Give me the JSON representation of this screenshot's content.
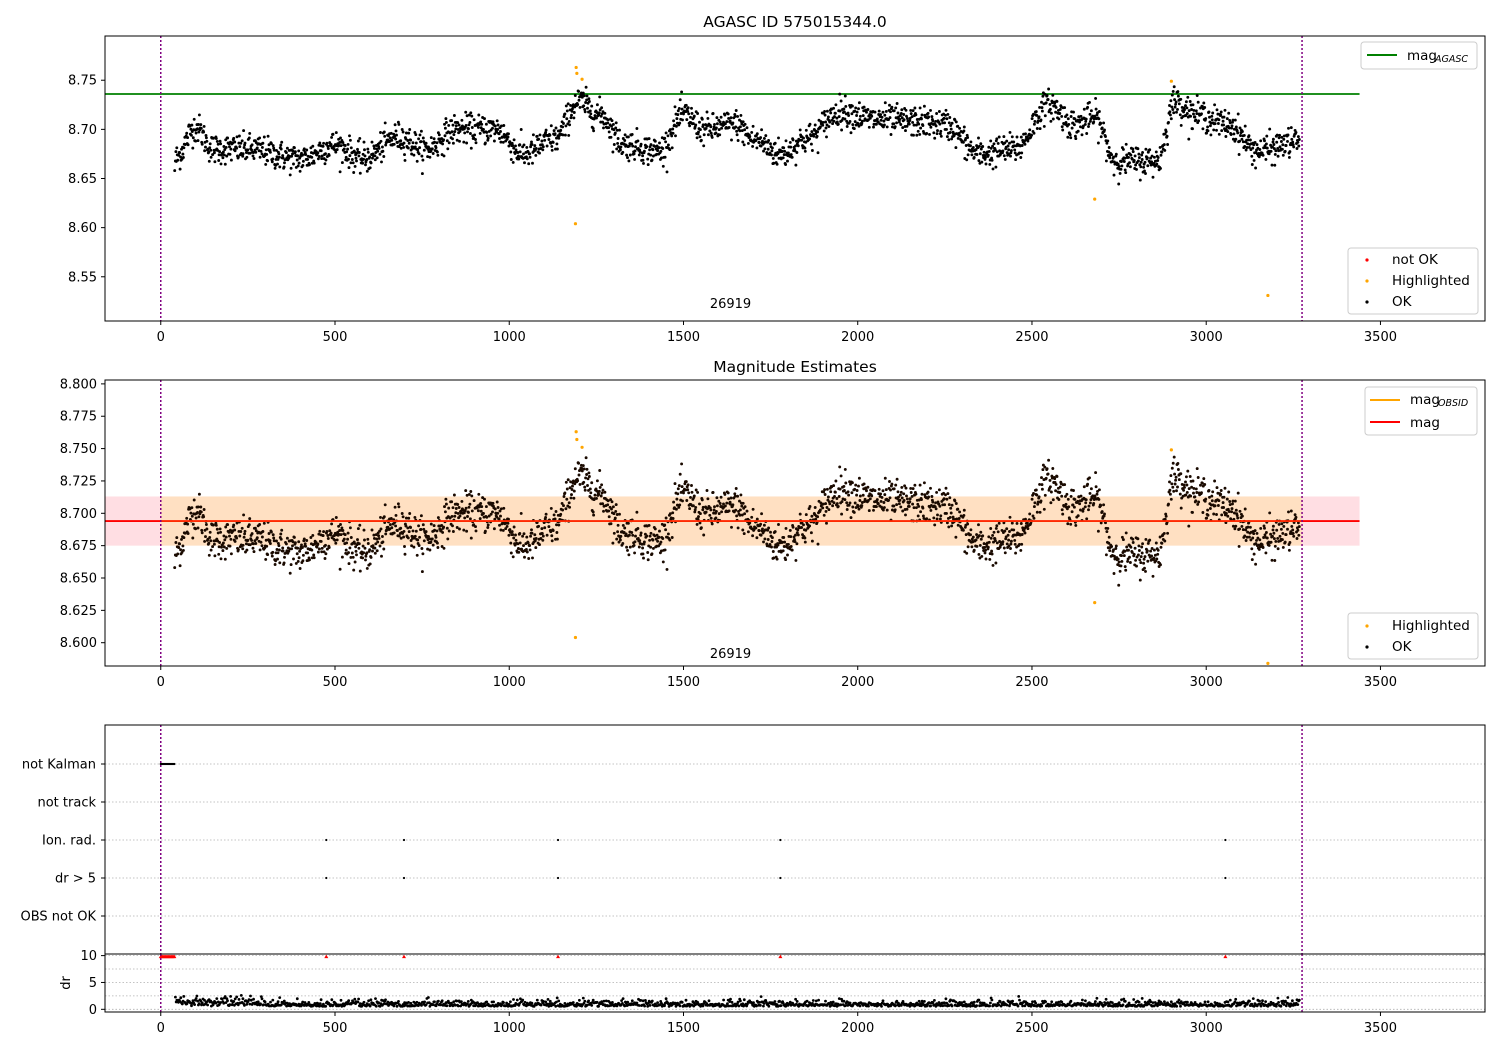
{
  "chart_data": [
    {
      "type": "scatter",
      "title": "AGASC ID 575015344.0",
      "xlim": [
        -160,
        3800
      ],
      "ylim": [
        8.505,
        8.795
      ],
      "xticks": [
        0,
        500,
        1000,
        1500,
        2000,
        2500,
        3000,
        3500
      ],
      "xtick_labels": [
        "0",
        "500",
        "1000",
        "1500",
        "2000",
        "2500",
        "3000",
        "3500"
      ],
      "yticks": [
        8.55,
        8.6,
        8.65,
        8.7,
        8.75
      ],
      "ytick_labels": [
        "8.55",
        "8.60",
        "8.65",
        "8.70",
        "8.75"
      ],
      "vlines": [
        0,
        3275
      ],
      "annotation": {
        "text": "26919",
        "x": 1635,
        "y": 8.518
      },
      "mag_agasc": 8.736,
      "mag_agasc_x": [
        -160,
        3440
      ],
      "legend_lines": [
        {
          "label": "mag",
          "sub": "AGASC",
          "color": "#008000"
        }
      ],
      "legend_points": [
        {
          "label": "not OK",
          "color": "#ff0000"
        },
        {
          "label": "Highlighted",
          "color": "#ffa500"
        },
        {
          "label": "OK",
          "color": "#000000"
        }
      ],
      "highlighted": [
        [
          1192,
          8.763
        ],
        [
          1194,
          8.757
        ],
        [
          1209,
          8.751
        ],
        [
          1190,
          8.604
        ],
        [
          2680,
          8.629
        ],
        [
          2900,
          8.749
        ],
        [
          3177,
          8.531
        ]
      ]
    },
    {
      "type": "scatter",
      "title": "Magnitude Estimates",
      "xlim": [
        -160,
        3800
      ],
      "ylim": [
        8.582,
        8.803
      ],
      "xticks": [
        0,
        500,
        1000,
        1500,
        2000,
        2500,
        3000,
        3500
      ],
      "xtick_labels": [
        "0",
        "500",
        "1000",
        "1500",
        "2000",
        "2500",
        "3000",
        "3500"
      ],
      "yticks": [
        8.6,
        8.625,
        8.65,
        8.675,
        8.7,
        8.725,
        8.75,
        8.775,
        8.8
      ],
      "ytick_labels": [
        "8.600",
        "8.625",
        "8.650",
        "8.675",
        "8.700",
        "8.725",
        "8.750",
        "8.775",
        "8.800"
      ],
      "vlines": [
        0,
        3275
      ],
      "annotation": {
        "text": "26919",
        "x": 1635,
        "y": 8.588
      },
      "mag": 8.694,
      "mag_band": [
        8.675,
        8.713
      ],
      "mag_x": [
        -160,
        3440
      ],
      "legend_lines": [
        {
          "label": "mag",
          "sub": "OBSID",
          "color": "#ffa500"
        },
        {
          "label": "mag",
          "sub": "",
          "color": "#ff0000"
        }
      ],
      "legend_points": [
        {
          "label": "Highlighted",
          "color": "#ffa500"
        },
        {
          "label": "OK",
          "color": "#000000"
        }
      ],
      "highlighted": [
        [
          1192,
          8.763
        ],
        [
          1194,
          8.757
        ],
        [
          1209,
          8.751
        ],
        [
          1190,
          8.604
        ],
        [
          2680,
          8.631
        ],
        [
          2900,
          8.749
        ],
        [
          3177,
          8.584
        ]
      ]
    },
    {
      "type": "scatter",
      "title": "",
      "xlim": [
        -160,
        3800
      ],
      "categories": [
        "not Kalman",
        "not track",
        "Ion. rad.",
        "dr > 5",
        "OBS not OK"
      ],
      "flags": {
        "not Kalman": [
          0,
          3,
          6,
          9,
          12,
          15,
          18,
          21,
          24,
          27,
          30,
          33,
          36,
          39
        ],
        "not track": [],
        "Ion. rad.": [
          475,
          698,
          1140,
          1778,
          3055
        ],
        "dr > 5": [
          475,
          698,
          1140,
          1778,
          3055
        ],
        "OBS not OK": []
      },
      "vlines": [
        0,
        3275
      ]
    },
    {
      "type": "scatter",
      "title": "",
      "ylabel": "dr",
      "xlim": [
        -160,
        3800
      ],
      "ylim": [
        -0.5,
        10.3
      ],
      "xticks": [
        0,
        500,
        1000,
        1500,
        2000,
        2500,
        3000,
        3500
      ],
      "xtick_labels": [
        "0",
        "500",
        "1000",
        "1500",
        "2000",
        "2500",
        "3000",
        "3500"
      ],
      "yticks": [
        0,
        5,
        10
      ],
      "ytick_labels": [
        "0",
        "5",
        "10"
      ],
      "clipped_high": [
        0,
        3,
        6,
        9,
        12,
        15,
        18,
        21,
        24,
        27,
        30,
        33,
        36,
        39,
        475,
        698,
        1140,
        1778,
        3055
      ],
      "vlines": [
        0,
        3275
      ]
    }
  ],
  "colors": {
    "ok": "#000000",
    "highlighted": "#ffa500",
    "not_ok": "#ff0000",
    "agasc": "#008000",
    "vline": "#800080",
    "band": "#ffb6c1",
    "band_inner": "#ffcc99"
  }
}
